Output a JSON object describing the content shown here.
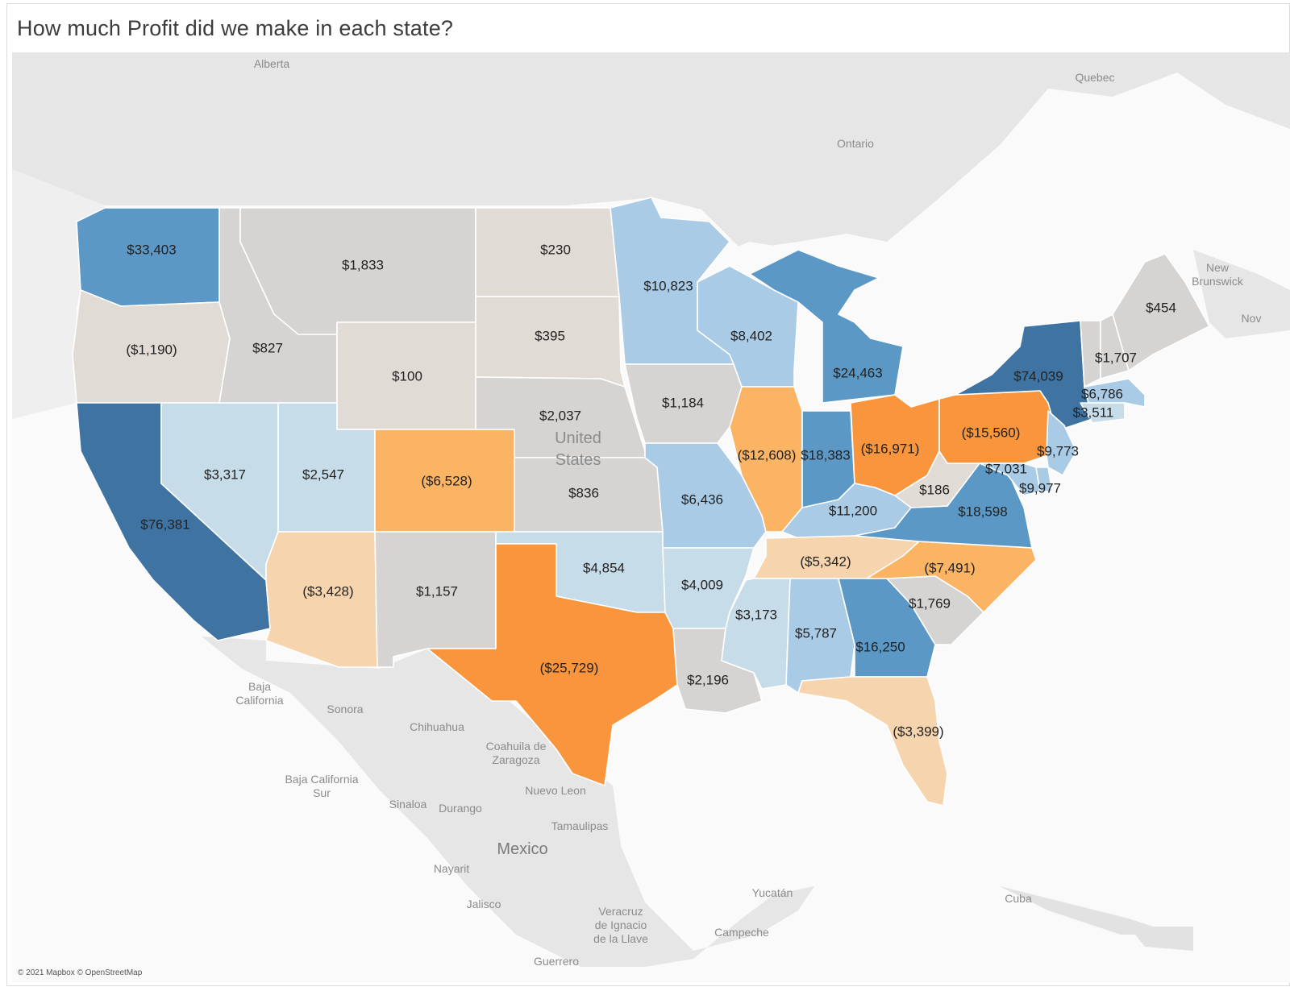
{
  "title": "How much Profit did we make in each state?",
  "attribution": "© 2021 Mapbox © OpenStreetMap",
  "colors": {
    "land": "#e3e3e3",
    "water": "#fafafa",
    "neutral": "#d6d4d2",
    "blue_dark": "#3f73a2",
    "blue_mid": "#5b98c6",
    "blue_light": "#a9cbe6",
    "blue_pale": "#c6dce8",
    "orange_dark": "#f8953d",
    "orange_mid": "#fbb463",
    "orange_light": "#f6d4ae",
    "beige": "#e0dbd4"
  },
  "places": [
    {
      "name": "Alberta",
      "size": "normal"
    },
    {
      "name": "Quebec",
      "size": "normal"
    },
    {
      "name": "Ontario",
      "size": "normal"
    },
    {
      "name": "New Brunswick",
      "size": "normal"
    },
    {
      "name": "Nov",
      "size": "normal"
    },
    {
      "name": "United States",
      "size": "normal"
    },
    {
      "name": "Baja California",
      "size": "normal"
    },
    {
      "name": "Sonora",
      "size": "normal"
    },
    {
      "name": "Chihuahua",
      "size": "normal"
    },
    {
      "name": "Coahuila de Zaragoza",
      "size": "normal"
    },
    {
      "name": "Baja California Sur",
      "size": "normal"
    },
    {
      "name": "Nuevo Leon",
      "size": "normal"
    },
    {
      "name": "Sinaloa",
      "size": "normal"
    },
    {
      "name": "Durango",
      "size": "normal"
    },
    {
      "name": "Tamaulipas",
      "size": "normal"
    },
    {
      "name": "Mexico",
      "size": "big"
    },
    {
      "name": "Nayarit",
      "size": "normal"
    },
    {
      "name": "Jalisco",
      "size": "normal"
    },
    {
      "name": "Veracruz de Ignacio de la Llave",
      "size": "normal"
    },
    {
      "name": "Yucatán",
      "size": "normal"
    },
    {
      "name": "Campeche",
      "size": "normal"
    },
    {
      "name": "Cuba",
      "size": "normal"
    },
    {
      "name": "Guerrero",
      "size": "normal"
    }
  ],
  "chart_data": {
    "type": "choropleth",
    "title": "How much Profit did we make in each state?",
    "measure": "Profit",
    "states": [
      {
        "state": "Washington",
        "profit": 33403,
        "label": "$33,403",
        "color": "blue_mid"
      },
      {
        "state": "Oregon",
        "profit": -1190,
        "label": "($1,190)",
        "color": "beige"
      },
      {
        "state": "California",
        "profit": 76381,
        "label": "$76,381",
        "color": "blue_dark"
      },
      {
        "state": "Nevada",
        "profit": 3317,
        "label": "$3,317",
        "color": "blue_pale"
      },
      {
        "state": "Idaho",
        "profit": 827,
        "label": "$827",
        "color": "neutral"
      },
      {
        "state": "Montana",
        "profit": 1833,
        "label": "$1,833",
        "color": "neutral"
      },
      {
        "state": "Wyoming",
        "profit": 100,
        "label": "$100",
        "color": "beige"
      },
      {
        "state": "Utah",
        "profit": 2547,
        "label": "$2,547",
        "color": "blue_pale"
      },
      {
        "state": "Arizona",
        "profit": -3428,
        "label": "($3,428)",
        "color": "orange_light"
      },
      {
        "state": "Colorado",
        "profit": -6528,
        "label": "($6,528)",
        "color": "orange_mid"
      },
      {
        "state": "New Mexico",
        "profit": 1157,
        "label": "$1,157",
        "color": "neutral"
      },
      {
        "state": "North Dakota",
        "profit": 230,
        "label": "$230",
        "color": "beige"
      },
      {
        "state": "South Dakota",
        "profit": 395,
        "label": "$395",
        "color": "beige"
      },
      {
        "state": "Nebraska",
        "profit": 2037,
        "label": "$2,037",
        "color": "neutral"
      },
      {
        "state": "Kansas",
        "profit": 836,
        "label": "$836",
        "color": "neutral"
      },
      {
        "state": "Oklahoma",
        "profit": 4854,
        "label": "$4,854",
        "color": "blue_pale"
      },
      {
        "state": "Texas",
        "profit": -25729,
        "label": "($25,729)",
        "color": "orange_dark"
      },
      {
        "state": "Minnesota",
        "profit": 10823,
        "label": "$10,823",
        "color": "blue_light"
      },
      {
        "state": "Iowa",
        "profit": 1184,
        "label": "$1,184",
        "color": "neutral"
      },
      {
        "state": "Missouri",
        "profit": 6436,
        "label": "$6,436",
        "color": "blue_light"
      },
      {
        "state": "Arkansas",
        "profit": 4009,
        "label": "$4,009",
        "color": "blue_pale"
      },
      {
        "state": "Louisiana",
        "profit": 2196,
        "label": "$2,196",
        "color": "neutral"
      },
      {
        "state": "Wisconsin",
        "profit": 8402,
        "label": "$8,402",
        "color": "blue_light"
      },
      {
        "state": "Illinois",
        "profit": -12608,
        "label": "($12,608)",
        "color": "orange_mid"
      },
      {
        "state": "Michigan",
        "profit": 24463,
        "label": "$24,463",
        "color": "blue_mid"
      },
      {
        "state": "Indiana",
        "profit": 18383,
        "label": "$18,383",
        "color": "blue_mid"
      },
      {
        "state": "Ohio",
        "profit": -16971,
        "label": "($16,971)",
        "color": "orange_dark"
      },
      {
        "state": "Kentucky",
        "profit": 11200,
        "label": "$11,200",
        "color": "blue_light"
      },
      {
        "state": "Tennessee",
        "profit": -5342,
        "label": "($5,342)",
        "color": "orange_light"
      },
      {
        "state": "Mississippi",
        "profit": 3173,
        "label": "$3,173",
        "color": "blue_pale"
      },
      {
        "state": "Alabama",
        "profit": 5787,
        "label": "$5,787",
        "color": "blue_light"
      },
      {
        "state": "Georgia",
        "profit": 16250,
        "label": "$16,250",
        "color": "blue_mid"
      },
      {
        "state": "Florida",
        "profit": -3399,
        "label": "($3,399)",
        "color": "orange_light"
      },
      {
        "state": "South Carolina",
        "profit": 1769,
        "label": "$1,769",
        "color": "neutral"
      },
      {
        "state": "North Carolina",
        "profit": -7491,
        "label": "($7,491)",
        "color": "orange_mid"
      },
      {
        "state": "Virginia",
        "profit": 18598,
        "label": "$18,598",
        "color": "blue_mid"
      },
      {
        "state": "West Virginia",
        "profit": 186,
        "label": "$186",
        "color": "beige"
      },
      {
        "state": "Pennsylvania",
        "profit": -15560,
        "label": "($15,560)",
        "color": "orange_dark"
      },
      {
        "state": "New York",
        "profit": 74039,
        "label": "$74,039",
        "color": "blue_dark"
      },
      {
        "state": "New Jersey",
        "profit": 9773,
        "label": "$9,773",
        "color": "blue_light"
      },
      {
        "state": "Maryland",
        "profit": 7031,
        "label": "$7,031",
        "color": "blue_light"
      },
      {
        "state": "Delaware",
        "profit": 9977,
        "label": "$9,977",
        "color": "blue_light"
      },
      {
        "state": "Vermont",
        "profit": 1707,
        "label": "$1,707",
        "color": "neutral"
      },
      {
        "state": "New Hampshire",
        "profit": 1707,
        "label": "$1,707",
        "color": "neutral"
      },
      {
        "state": "Maine",
        "profit": 454,
        "label": "$454",
        "color": "neutral"
      },
      {
        "state": "Massachusetts",
        "profit": 6786,
        "label": "$6,786",
        "color": "blue_light"
      },
      {
        "state": "Connecticut",
        "profit": 3511,
        "label": "$3,511",
        "color": "blue_pale"
      }
    ]
  }
}
